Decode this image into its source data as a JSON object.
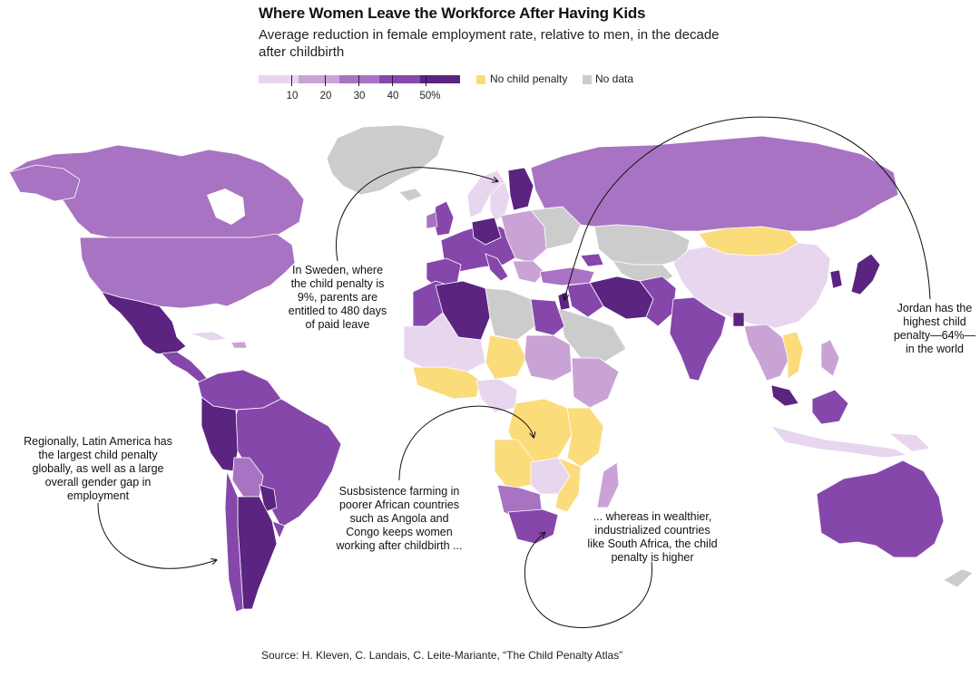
{
  "title": "Where Women Leave the Workforce After Having Kids",
  "subtitle": "Average reduction in female employment rate, relative to men, in the decade after childbirth",
  "legend": {
    "ticks": [
      "10",
      "20",
      "30",
      "40",
      "50%"
    ],
    "ramp_colors": [
      "#e8d6ee",
      "#c9a3d6",
      "#a873c3",
      "#8647ab",
      "#5b2480"
    ],
    "no_penalty_label": "No child penalty",
    "no_penalty_color": "#fbdc7a",
    "no_data_label": "No data",
    "no_data_color": "#cccccc"
  },
  "annotations": {
    "sweden": "In Sweden, where the child penalty is 9%, parents are entitled to 480 days of paid leave",
    "jordan": "Jordan has the highest child penalty—64%— in the world",
    "latin_america": "Regionally, Latin America has the largest child penalty globally, as well as a large overall gender gap in employment",
    "africa_farming": "Susbsistence farming in poorer African countries such as Angola and Congo keeps women working after childbirth ...",
    "south_africa": "... whereas in wealthier, industrialized countries like South Africa, the child penalty is higher"
  },
  "source": "Source: H. Kleven, C. Landais, C. Leite-Mariante, “The Child Penalty Atlas”"
}
